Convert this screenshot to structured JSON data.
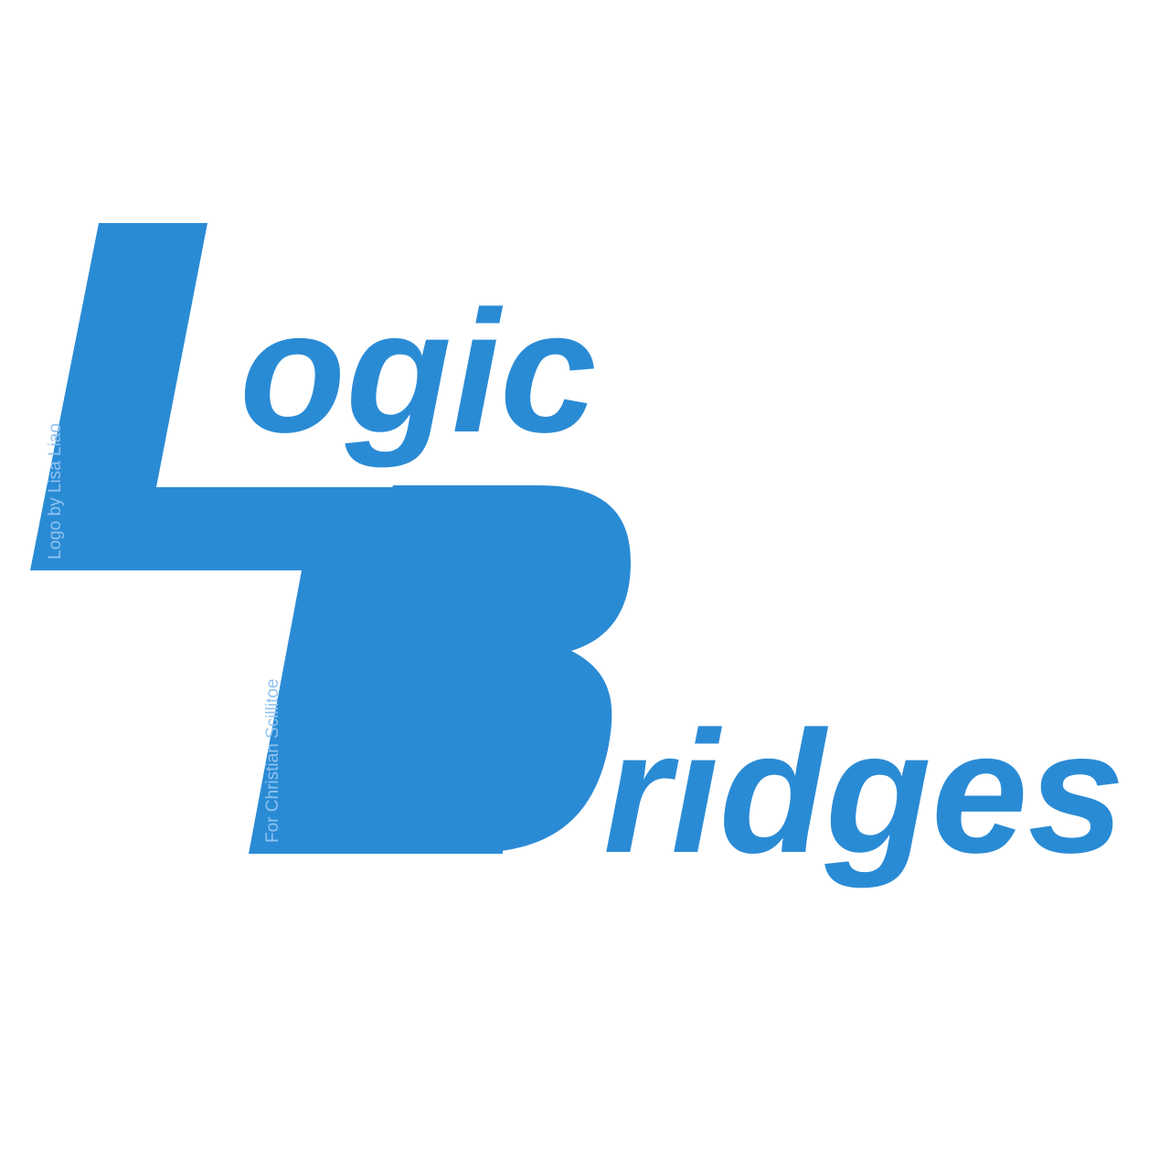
{
  "logo": {
    "first_word_rest": "ogic",
    "second_word_rest": "ridges",
    "big_letter_L": "L",
    "big_letter_B": "B",
    "credit_designer": "Logo by Lisa Liao",
    "credit_client": "For Christian Scillitoe"
  },
  "colors": {
    "brand_blue": "#2A8BD5",
    "credit_text": "#8FC3F0",
    "background": "#FFFFFF"
  }
}
